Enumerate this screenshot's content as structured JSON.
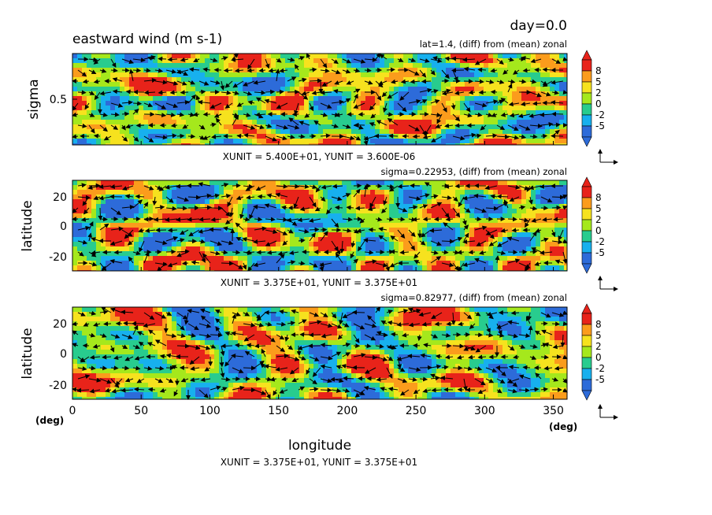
{
  "header": {
    "day_label": "day=0.0",
    "variable_title": "eastward wind (m s-1)"
  },
  "colors": {
    "levels": [
      "#2d6bd9",
      "#17b0ee",
      "#28cc8e",
      "#a5e81c",
      "#f6e21e",
      "#fb9c1c",
      "#e8231a"
    ]
  },
  "chart_data": [
    {
      "type": "heatmap",
      "subtitle": "lat=1.4, (diff) from (mean) zonal",
      "ylabel": "sigma",
      "yticks": [
        "0.5"
      ],
      "unit_note": "XUNIT = 5.400E+01, YUNIT = 3.600E-06",
      "colorbar_labels": [
        "8",
        "5",
        "2",
        "0",
        "-2",
        "-5"
      ],
      "xlim": [
        0,
        360
      ],
      "seed": 11
    },
    {
      "type": "heatmap",
      "subtitle": "sigma=0.22953, (diff) from (mean) zonal",
      "ylabel": "latitude",
      "yticks": [
        "20",
        "0",
        "-20"
      ],
      "unit_note": "XUNIT = 3.375E+01, YUNIT = 3.375E+01",
      "colorbar_labels": [
        "8",
        "5",
        "2",
        "0",
        "-2",
        "-5"
      ],
      "xlim": [
        0,
        360
      ],
      "ylim": [
        -30,
        30
      ],
      "seed": 23
    },
    {
      "type": "heatmap",
      "subtitle": "sigma=0.82977, (diff) from (mean) zonal",
      "ylabel": "latitude",
      "yticks": [
        "20",
        "0",
        "-20"
      ],
      "xlabel": "longitude",
      "xticks": [
        "0",
        "50",
        "100",
        "150",
        "200",
        "250",
        "300",
        "350"
      ],
      "x_unit_left": "(deg)",
      "x_unit_right": "(deg)",
      "unit_note": "XUNIT = 3.375E+01, YUNIT = 3.375E+01",
      "colorbar_labels": [
        "8",
        "5",
        "2",
        "0",
        "-2",
        "-5"
      ],
      "xlim": [
        0,
        360
      ],
      "ylim": [
        -30,
        30
      ],
      "seed": 37
    }
  ]
}
